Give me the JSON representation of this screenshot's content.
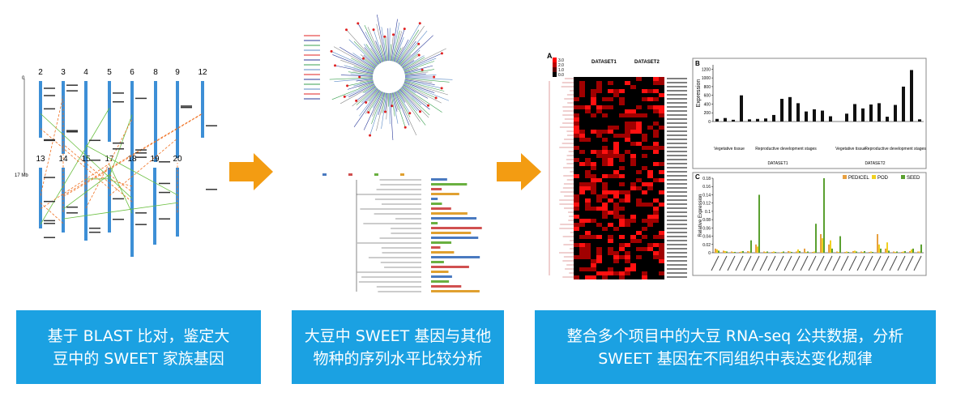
{
  "panel1": {
    "chromosomes_top": [
      "2",
      "3",
      "4",
      "5",
      "6",
      "8",
      "9",
      "12"
    ],
    "chromosomes_bottom": [
      "13",
      "14",
      "15",
      "17",
      "18",
      "19",
      "20"
    ],
    "scale_start": "0",
    "scale_end": "17 Mb"
  },
  "panel3": {
    "heatmap": {
      "label": "A",
      "legend_ticks": [
        "3.0",
        "2.0",
        "1.0",
        "0.0"
      ],
      "groups": [
        "DATASET1",
        "DATASET2"
      ]
    },
    "chart_b": {
      "type": "bar",
      "label": "B",
      "ylabel": "Expression",
      "ylim": [
        0,
        1300
      ],
      "yticks": [
        0,
        200,
        400,
        600,
        800,
        1000,
        1200
      ],
      "color": "#111111",
      "values": [
        60,
        80,
        40,
        600,
        50,
        60,
        70,
        150,
        520,
        560,
        420,
        230,
        280,
        250,
        120,
        0,
        180,
        400,
        300,
        390,
        420,
        110,
        380,
        800,
        1180,
        50
      ],
      "groups": [
        "Vegetative tissue",
        "Reproductive development stages",
        "Vegetative tissue",
        "Reproductive development stages"
      ],
      "datasets": [
        "DATASET1",
        "DATASET2"
      ]
    },
    "chart_c": {
      "type": "bar",
      "label": "C",
      "ylabel": "Relative Expression",
      "ylim": [
        0,
        0.18
      ],
      "yticks": [
        0,
        0.02,
        0.04,
        0.06,
        0.08,
        0.1,
        0.12,
        0.14,
        0.16,
        0.18
      ],
      "series": [
        {
          "name": "PEDICEL",
          "color": "#e8a040",
          "values": [
            0.01,
            0.005,
            0.003,
            0.002,
            0.004,
            0.02,
            0.003,
            0.002,
            0.001,
            0.004,
            0.003,
            0.01,
            0.002,
            0.045,
            0.02,
            0.003,
            0.002,
            0.004,
            0.003,
            0.002,
            0.045,
            0.01,
            0.003,
            0.002,
            0.004,
            0.003
          ]
        },
        {
          "name": "POD",
          "color": "#f0d020",
          "values": [
            0.008,
            0.004,
            0.002,
            0.003,
            0.003,
            0.015,
            0.002,
            0.003,
            0.002,
            0.003,
            0.008,
            0.002,
            0.003,
            0.035,
            0.03,
            0.002,
            0.003,
            0.005,
            0.002,
            0.003,
            0.02,
            0.025,
            0.002,
            0.003,
            0.008,
            0.003
          ]
        },
        {
          "name": "SEED",
          "color": "#5aa030",
          "values": [
            0.005,
            0.003,
            0.002,
            0.004,
            0.03,
            0.14,
            0.003,
            0.002,
            0.003,
            0.002,
            0.004,
            0.003,
            0.07,
            0.18,
            0.01,
            0.04,
            0.002,
            0.003,
            0.004,
            0.002,
            0.01,
            0.005,
            0.003,
            0.004,
            0.01,
            0.02
          ]
        }
      ]
    }
  },
  "captions": [
    {
      "lines": [
        "基于 BLAST 比对，鉴定大",
        "豆中的 SWEET 家族基因"
      ]
    },
    {
      "lines": [
        "大豆中 SWEET 基因与其他",
        "物种的序列水平比较分析"
      ]
    },
    {
      "lines": [
        "整合多个项目中的大豆 RNA-seq 公共数据，分析",
        "SWEET 基因在不同组织中表达变化规律"
      ]
    }
  ]
}
